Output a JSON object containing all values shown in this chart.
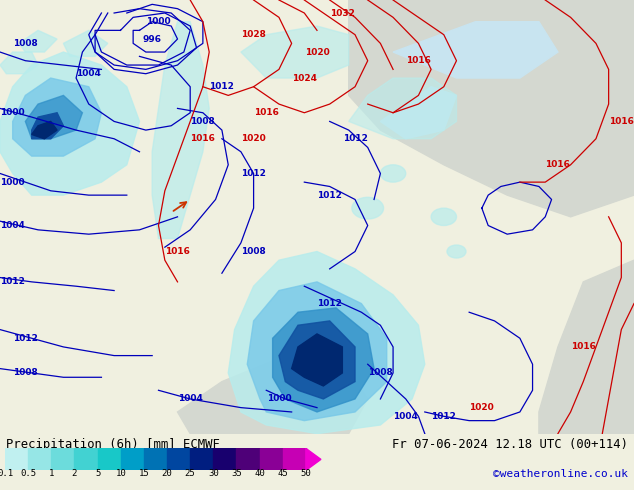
{
  "title_left": "Precipitation (6h) [mm] ECMWF",
  "title_right": "Fr 07-06-2024 12.18 UTC (00+114)",
  "watermark": "©weatheronline.co.uk",
  "colorbar_levels": [
    0.1,
    0.5,
    1,
    2,
    5,
    10,
    15,
    20,
    25,
    30,
    35,
    40,
    45,
    50
  ],
  "colorbar_colors": [
    "#c0f0f0",
    "#96e6e6",
    "#6cdcdc",
    "#42d2d2",
    "#18c8c8",
    "#009ec8",
    "#0072b4",
    "#0046a0",
    "#001e80",
    "#18006e",
    "#4e0078",
    "#8a0096",
    "#c600b4",
    "#f000d2"
  ],
  "land_color": "#b4d882",
  "sea_color": "#e8f4f8",
  "gray_bg": "#d8d8d8",
  "contour_blue": "#0000bb",
  "contour_red": "#cc0000",
  "border_color": "#888866",
  "bg_color": "#f0f0e0"
}
